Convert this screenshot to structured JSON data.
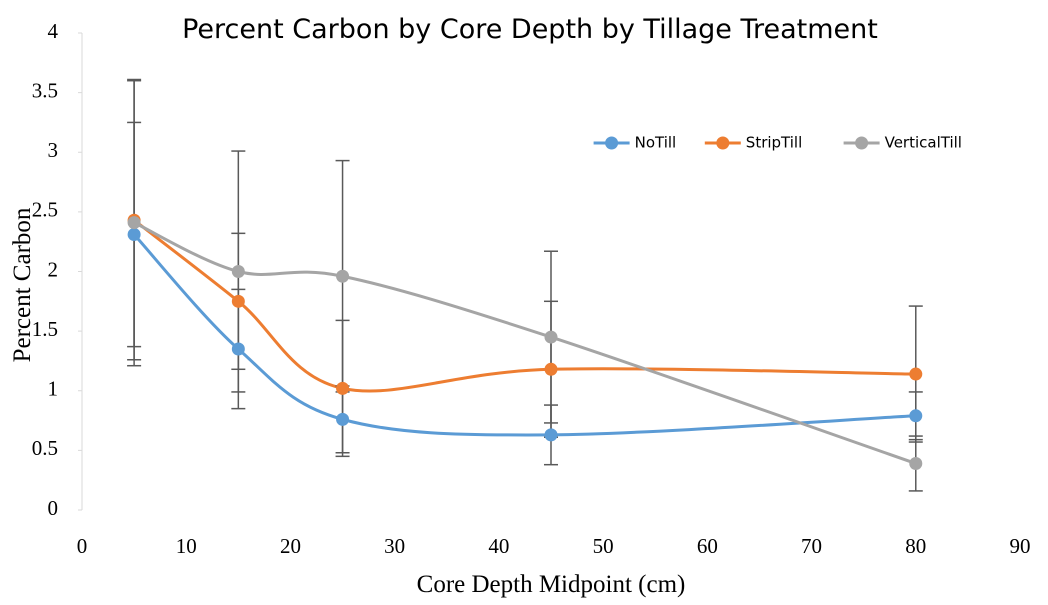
{
  "chart_data": {
    "type": "line",
    "smooth": true,
    "title": "Percent Carbon by Core Depth by Tillage Treatment",
    "x_label": "Core Depth Midpoint (cm)",
    "y_label": "Percent Carbon",
    "x": [
      5,
      15,
      25,
      45,
      80
    ],
    "series": [
      {
        "name": "NoTill",
        "color": "#5b9bd5",
        "values": [
          2.31,
          1.35,
          0.76,
          0.63,
          0.79
        ],
        "errors": [
          0.94,
          0.5,
          0.28,
          0.25,
          0.2
        ]
      },
      {
        "name": "StripTill",
        "color": "#ed7d31",
        "values": [
          2.43,
          1.75,
          1.02,
          1.18,
          1.14
        ],
        "errors": [
          1.17,
          0.57,
          0.57,
          0.57,
          0.57
        ]
      },
      {
        "name": "VerticalTill",
        "color": "#a5a5a5",
        "values": [
          2.41,
          2.0,
          1.96,
          1.45,
          0.39
        ],
        "errors": [
          1.2,
          1.01,
          0.97,
          0.72,
          0.23
        ]
      }
    ],
    "xlim": [
      0,
      90
    ],
    "xticks": [
      0,
      10,
      20,
      30,
      40,
      50,
      60,
      70,
      80,
      90
    ],
    "ylim": [
      0,
      4
    ],
    "yticks": [
      0,
      0.5,
      1,
      1.5,
      2,
      2.5,
      3,
      3.5,
      4
    ],
    "error_bar_color": "#595959",
    "legend": "upper right"
  }
}
